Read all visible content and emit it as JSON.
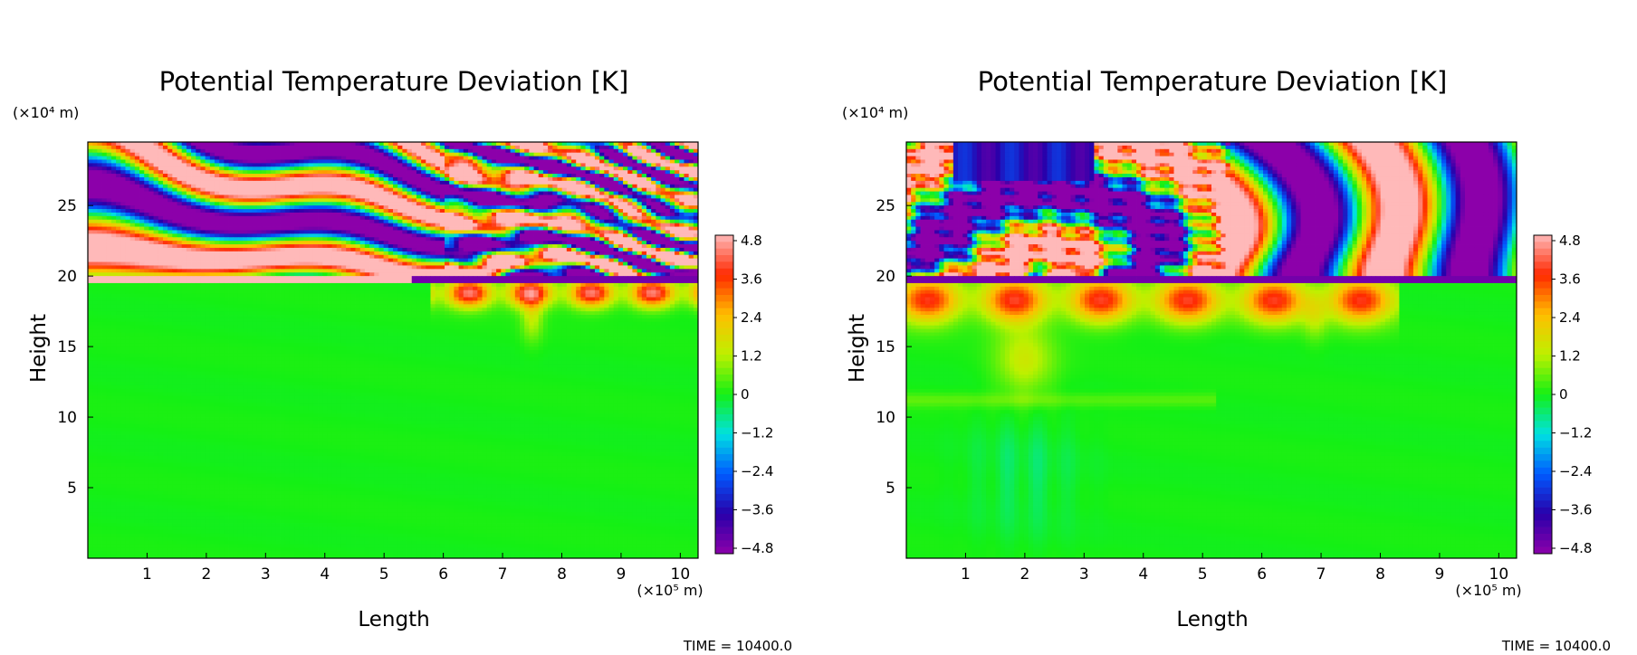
{
  "chart_data": [
    {
      "type": "heatmap",
      "title": "Potential Temperature Deviation [K]",
      "xlabel": "Length",
      "ylabel": "Height",
      "x_unit_label": "(×10⁵ m)",
      "y_unit_label": "(×10⁴ m)",
      "xlim": [
        0,
        10.3
      ],
      "ylim": [
        0,
        29.5
      ],
      "x_ticks": [
        "1",
        "2",
        "3",
        "4",
        "5",
        "6",
        "7",
        "8",
        "9",
        "10"
      ],
      "y_ticks": [
        "5",
        "10",
        "15",
        "20",
        "25"
      ],
      "colorbar_range": [
        -4.8,
        4.8
      ],
      "colorbar_ticks": [
        "4.8",
        "3.6",
        "2.4",
        "1.2",
        "0",
        "−1.2",
        "−2.4",
        "−3.6",
        "−4.8"
      ],
      "time_label": "TIME = 10400.0",
      "field_summary": {
        "tropopause_height": 19.8,
        "stratosphere_wave_pattern": "large-scale alternating bands, fine structure for x > 6",
        "troposphere": "near zero, warm anomalies 0.5–4 near x 6–10 just below tropopause"
      }
    },
    {
      "type": "heatmap",
      "title": "Potential Temperature Deviation [K]",
      "xlabel": "Length",
      "ylabel": "Height",
      "x_unit_label": "(×10⁵ m)",
      "y_unit_label": "(×10⁴ m)",
      "xlim": [
        0,
        10.3
      ],
      "ylim": [
        0,
        29.5
      ],
      "x_ticks": [
        "1",
        "2",
        "3",
        "4",
        "5",
        "6",
        "7",
        "8",
        "9",
        "10"
      ],
      "y_ticks": [
        "5",
        "10",
        "15",
        "20",
        "25"
      ],
      "colorbar_range": [
        -4.8,
        4.8
      ],
      "colorbar_ticks": [
        "4.8",
        "3.6",
        "2.4",
        "1.2",
        "0",
        "−1.2",
        "−2.4",
        "−3.6",
        "−4.8"
      ],
      "time_label": "TIME = 10400.0",
      "field_summary": {
        "tropopause_height": 19.8,
        "stratosphere_wave_pattern": "symmetric fan of wave bands about x ≈ 2, fine structure near center",
        "troposphere": "warm anomalies 1–4 spanning x 0–8 below tropopause, weak cool plume near x ≈ 2"
      }
    }
  ]
}
